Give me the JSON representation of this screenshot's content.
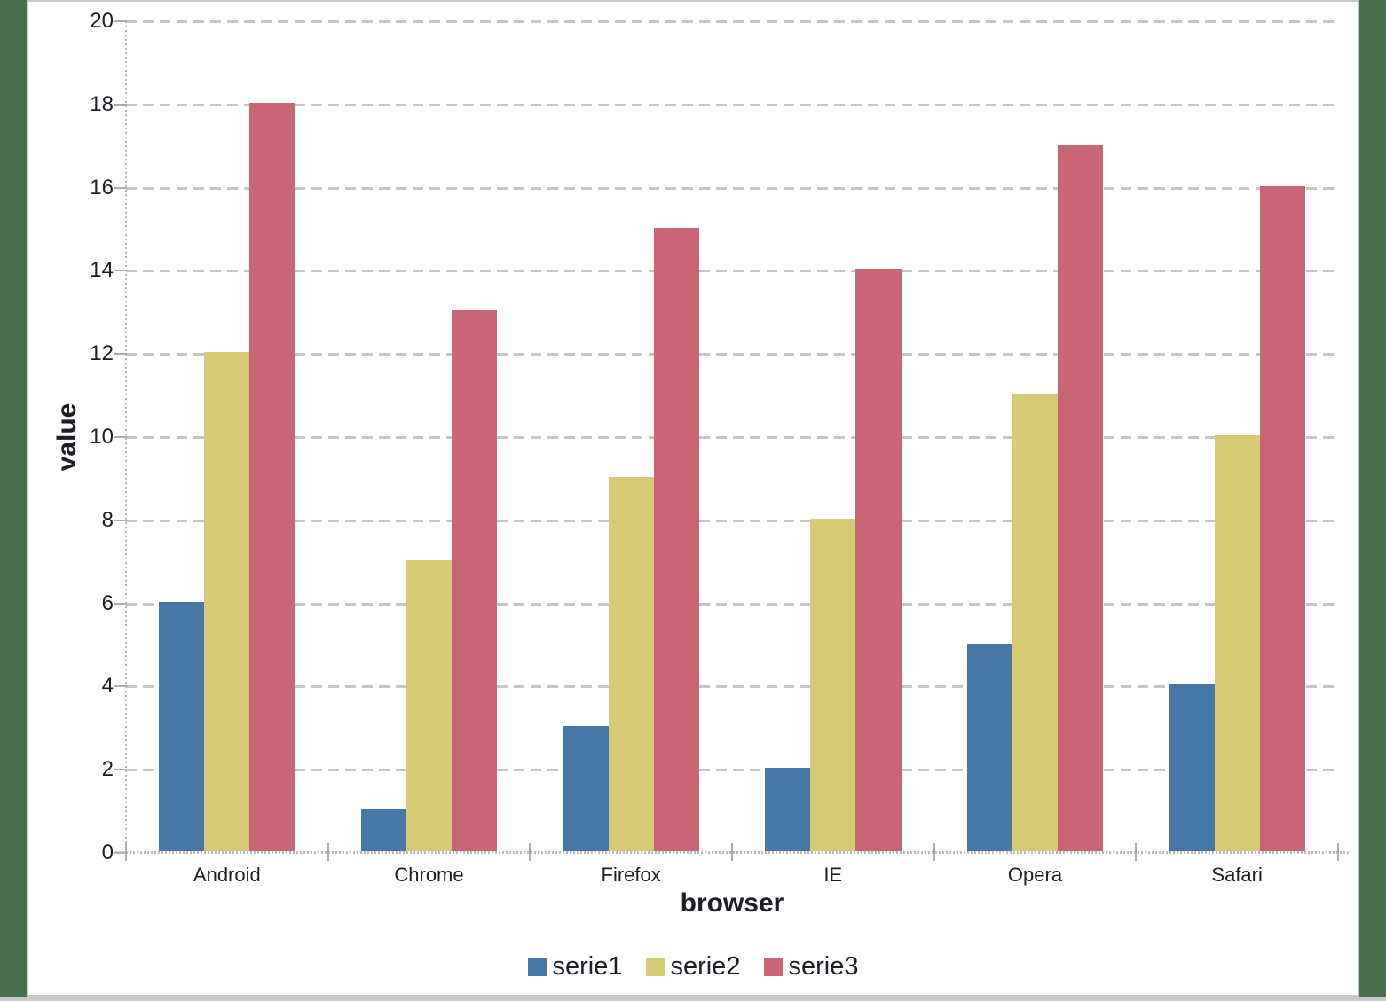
{
  "window": {
    "frame_color": "#47714e",
    "panel_border_color": "#c9c9c9",
    "bottom_bar_color": "#c9c9c9",
    "background": "#ffffff"
  },
  "chart_data": {
    "type": "bar",
    "title": "",
    "categories": [
      "Android",
      "Chrome",
      "Firefox",
      "IE",
      "Opera",
      "Safari"
    ],
    "series": [
      {
        "name": "serie1",
        "color": "#4677a7",
        "values": [
          6,
          1,
          3,
          2,
          5,
          4
        ]
      },
      {
        "name": "serie2",
        "color": "#d7ca75",
        "values": [
          12,
          7,
          9,
          8,
          11,
          10
        ]
      },
      {
        "name": "serie3",
        "color": "#c96676",
        "values": [
          18,
          13,
          15,
          14,
          17,
          16
        ]
      }
    ],
    "xlabel": "browser",
    "ylabel": "value",
    "ylim": [
      0,
      20
    ],
    "ytick_step": 2,
    "yticks": [
      0,
      2,
      4,
      6,
      8,
      10,
      12,
      14,
      16,
      18,
      20
    ],
    "grid": "horizontal-dashed",
    "gridline_color": "#c6c6c6",
    "axis_color": "#b9b9b9",
    "tick_color": "#ababab",
    "text_color": "#1d1d26",
    "legend_position": "bottom"
  }
}
